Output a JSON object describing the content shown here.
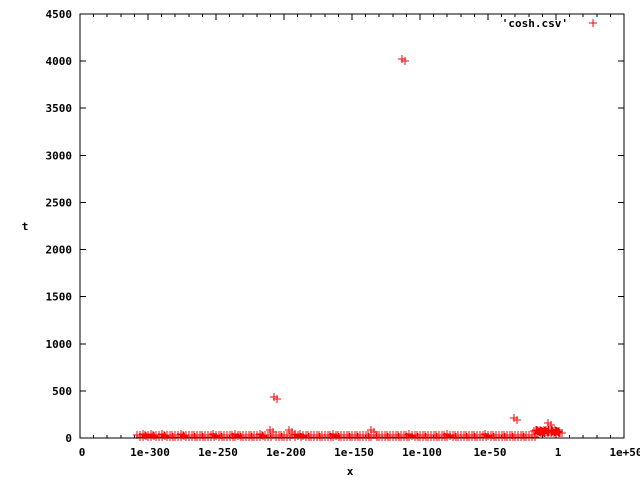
{
  "chart_data": {
    "type": "scatter",
    "title": "",
    "xlabel": "x",
    "ylabel": "t",
    "xscale": "log",
    "xlim": [
      0.0,
      1e+50
    ],
    "ylim": [
      0,
      4500
    ],
    "grid": false,
    "legend_position": "top-right",
    "x_tick_labels": [
      "0",
      "1e-300",
      "1e-250",
      "1e-200",
      "1e-150",
      "1e-100",
      "1e-50",
      "1",
      "1e+50"
    ],
    "x_tick_values": [
      0.0,
      1e-300,
      1e-250,
      1e-200,
      1e-150,
      1e-100,
      1e-50,
      1,
      1e+50
    ],
    "y_tick_labels": [
      "0",
      "500",
      "1000",
      "1500",
      "2000",
      "2500",
      "3000",
      "3500",
      "4000",
      "4500"
    ],
    "y_tick_values": [
      0,
      500,
      1000,
      1500,
      2000,
      2500,
      3000,
      3500,
      4000,
      4500
    ],
    "series": [
      {
        "name": "'cosh.csv'",
        "color": "#ff0000",
        "marker": "plus",
        "points": [
          [
            1e-308,
            35
          ],
          [
            1e-306,
            30
          ],
          [
            1e-304,
            38
          ],
          [
            1e-302,
            32
          ],
          [
            1e-300,
            35
          ],
          [
            1e-298,
            40
          ],
          [
            1e-296,
            33
          ],
          [
            1e-294,
            36
          ],
          [
            1e-292,
            31
          ],
          [
            1e-290,
            45
          ],
          [
            1e-288,
            34
          ],
          [
            1e-286,
            30
          ],
          [
            1e-284,
            37
          ],
          [
            1e-282,
            33
          ],
          [
            1e-280,
            35
          ],
          [
            1e-278,
            31
          ],
          [
            1e-276,
            38
          ],
          [
            1e-274,
            34
          ],
          [
            1e-272,
            30
          ],
          [
            1e-270,
            36
          ],
          [
            1e-268,
            33
          ],
          [
            1e-266,
            35
          ],
          [
            1e-264,
            31
          ],
          [
            1e-262,
            37
          ],
          [
            1e-260,
            34
          ],
          [
            1e-258,
            30
          ],
          [
            1e-256,
            36
          ],
          [
            1e-254,
            33
          ],
          [
            1e-252,
            42
          ],
          [
            1e-250,
            34
          ],
          [
            1e-248,
            30
          ],
          [
            1e-246,
            37
          ],
          [
            1e-244,
            33
          ],
          [
            1e-242,
            35
          ],
          [
            1e-240,
            31
          ],
          [
            1e-238,
            36
          ],
          [
            1e-236,
            40
          ],
          [
            1e-234,
            30
          ],
          [
            1e-232,
            35
          ],
          [
            1e-230,
            33
          ],
          [
            1e-228,
            37
          ],
          [
            1e-226,
            31
          ],
          [
            1e-224,
            34
          ],
          [
            1e-222,
            36
          ],
          [
            1e-220,
            30
          ],
          [
            1e-218,
            38
          ],
          [
            1e-216,
            33
          ],
          [
            1e-214,
            35
          ],
          [
            1e-212,
            31
          ],
          [
            1e-210,
            90
          ],
          [
            1e-208,
            34
          ],
          [
            1e-207,
            430
          ],
          [
            1e-206,
            36
          ],
          [
            1e-204,
            30
          ],
          [
            1e-202,
            37
          ],
          [
            1e-200,
            33
          ],
          [
            1e-198,
            35
          ],
          [
            1e-196,
            80
          ],
          [
            1e-194,
            31
          ],
          [
            1e-192,
            38
          ],
          [
            1e-190,
            34
          ],
          [
            1e-188,
            40
          ],
          [
            1e-186,
            36
          ],
          [
            1e-184,
            33
          ],
          [
            1e-182,
            35
          ],
          [
            1e-180,
            31
          ],
          [
            1e-178,
            37
          ],
          [
            1e-176,
            34
          ],
          [
            1e-174,
            30
          ],
          [
            1e-172,
            36
          ],
          [
            1e-170,
            33
          ],
          [
            1e-168,
            35
          ],
          [
            1e-166,
            31
          ],
          [
            1e-164,
            38
          ],
          [
            1e-162,
            34
          ],
          [
            1e-160,
            30
          ],
          [
            1e-158,
            36
          ],
          [
            1e-156,
            33
          ],
          [
            1e-154,
            35
          ],
          [
            1e-152,
            31
          ],
          [
            1e-150,
            37
          ],
          [
            1e-148,
            34
          ],
          [
            1e-146,
            30
          ],
          [
            1e-144,
            36
          ],
          [
            1e-142,
            33
          ],
          [
            1e-140,
            35
          ],
          [
            1e-138,
            31
          ],
          [
            1e-136,
            80
          ],
          [
            1e-134,
            34
          ],
          [
            1e-132,
            30
          ],
          [
            1e-130,
            36
          ],
          [
            1e-128,
            33
          ],
          [
            1e-126,
            35
          ],
          [
            1e-124,
            31
          ],
          [
            1e-122,
            37
          ],
          [
            1e-120,
            34
          ],
          [
            1e-118,
            30
          ],
          [
            1e-116,
            36
          ],
          [
            1e-114,
            33
          ],
          [
            1e-113,
            4020
          ],
          [
            1e-112,
            35
          ],
          [
            1e-110,
            31
          ],
          [
            1e-108,
            38
          ],
          [
            1e-106,
            34
          ],
          [
            1e-104,
            30
          ],
          [
            1e-102,
            36
          ],
          [
            1e-100,
            33
          ],
          [
            1e-98,
            35
          ],
          [
            1e-96,
            31
          ],
          [
            1e-94,
            37
          ],
          [
            1e-92,
            34
          ],
          [
            1e-90,
            30
          ],
          [
            1e-88,
            36
          ],
          [
            1e-86,
            33
          ],
          [
            1e-84,
            35
          ],
          [
            1e-82,
            31
          ],
          [
            1e-80,
            40
          ],
          [
            1e-78,
            34
          ],
          [
            1e-76,
            30
          ],
          [
            1e-74,
            36
          ],
          [
            1e-72,
            33
          ],
          [
            1e-70,
            35
          ],
          [
            1e-68,
            31
          ],
          [
            1e-66,
            37
          ],
          [
            1e-64,
            34
          ],
          [
            1e-62,
            30
          ],
          [
            1e-60,
            36
          ],
          [
            1e-58,
            33
          ],
          [
            1e-56,
            35
          ],
          [
            1e-54,
            31
          ],
          [
            1e-52,
            38
          ],
          [
            1e-50,
            34
          ],
          [
            1e-48,
            30
          ],
          [
            1e-46,
            36
          ],
          [
            1e-44,
            33
          ],
          [
            1e-42,
            35
          ],
          [
            1e-40,
            31
          ],
          [
            1e-38,
            37
          ],
          [
            1e-36,
            34
          ],
          [
            1e-34,
            30
          ],
          [
            1e-32,
            36
          ],
          [
            1e-31,
            215
          ],
          [
            1e-30,
            33
          ],
          [
            1e-28,
            35
          ],
          [
            1e-26,
            31
          ],
          [
            1e-24,
            37
          ],
          [
            1e-22,
            34
          ],
          [
            1e-20,
            30
          ],
          [
            1e-18,
            36
          ],
          [
            1e-16,
            75
          ],
          [
            1e-15,
            90
          ],
          [
            1e-14,
            80
          ],
          [
            1e-13,
            70
          ],
          [
            1e-12,
            85
          ],
          [
            1e-11,
            78
          ],
          [
            1e-10,
            72
          ],
          [
            1e-09,
            88
          ],
          [
            1e-08,
            76
          ],
          [
            1e-07,
            82
          ],
          [
            1e-06,
            70
          ],
          [
            1e-05,
            86
          ],
          [
            0.0001,
            74
          ],
          [
            0.001,
            80
          ],
          [
            0.01,
            72
          ],
          [
            0.1,
            84
          ],
          [
            1,
            78
          ],
          [
            10.0,
            75
          ],
          [
            100.0,
            70
          ],
          [
            1e-06,
            160
          ]
        ]
      }
    ]
  }
}
